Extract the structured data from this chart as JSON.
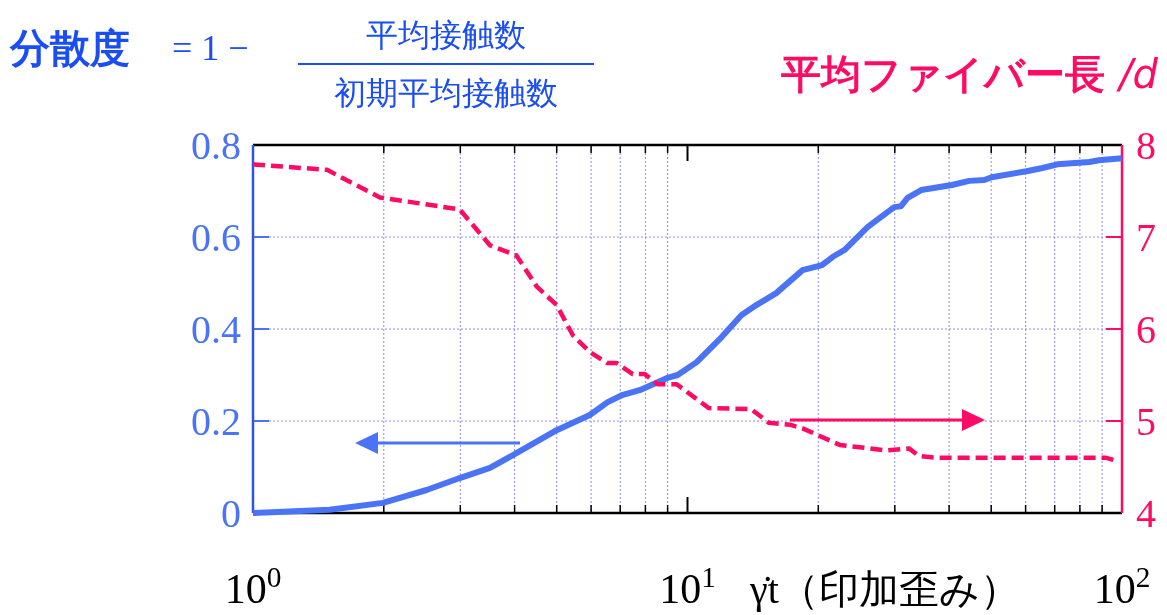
{
  "chart_data": {
    "type": "line",
    "ylabel": "分散度 = 1 − 平均接触数/初期平均接触数",
    "y2label": "平均ファイバー長 /d",
    "xlabel": "γ̇t（印加歪み）",
    "log": "x",
    "xlim": [
      1,
      100
    ],
    "xticks": [
      {
        "value": 1,
        "label": "10$^{0}$"
      },
      {
        "value": 10,
        "label": "10$^{1}$"
      },
      {
        "value": 100,
        "label": "10$^{2}$"
      }
    ],
    "ylim": [
      0,
      0.8
    ],
    "yticks": [
      0,
      0.2,
      0.4,
      0.6,
      0.8
    ],
    "y2lim": [
      4,
      8
    ],
    "y2ticks": [
      4,
      5,
      6,
      7,
      8
    ],
    "grid": true,
    "series": [
      {
        "color": "#4a74f5",
        "line_style": "solid",
        "x": [
          1,
          1.5,
          1.99,
          2.51,
          2.99,
          3.51,
          4.04,
          5.0,
          5.45,
          5.96,
          6.55,
          7.1,
          7.76,
          8.95,
          9.49,
          10.5,
          12.0,
          13.3,
          14.4,
          16.0,
          18.4,
          20.4,
          21.6,
          23.0,
          26.0,
          29.9,
          31.0,
          32.1,
          34.5,
          40.6,
          44.5,
          48.2,
          50.1,
          60.3,
          65.6,
          71.0,
          84.1,
          88.5,
          100
        ],
        "values": [
          0,
          0.007,
          0.022,
          0.05,
          0.076,
          0.098,
          0.13,
          0.18,
          0.196,
          0.213,
          0.241,
          0.257,
          0.267,
          0.293,
          0.3,
          0.328,
          0.383,
          0.43,
          0.452,
          0.478,
          0.528,
          0.539,
          0.557,
          0.572,
          0.622,
          0.665,
          0.667,
          0.685,
          0.702,
          0.713,
          0.722,
          0.724,
          0.73,
          0.743,
          0.75,
          0.758,
          0.763,
          0.767,
          0.771
        ]
      },
      {
        "color": "#ff0a64",
        "line_style": "dashed",
        "axis": "y2",
        "x": [
          1,
          1.48,
          1.96,
          2.99,
          3.51,
          4.04,
          4.5,
          5.0,
          5.45,
          5.96,
          6.53,
          6.87,
          7.48,
          7.97,
          8.53,
          9.44,
          11.2,
          14.0,
          15.4,
          17.2,
          18.4,
          22.4,
          28.7,
          32.4,
          34.1,
          37.4,
          91.9,
          96.9
        ],
        "values": [
          7.79,
          7.73,
          7.43,
          7.3,
          6.91,
          6.8,
          6.46,
          6.26,
          5.93,
          5.75,
          5.63,
          5.63,
          5.51,
          5.51,
          5.4,
          5.4,
          5.14,
          5.13,
          4.98,
          4.96,
          4.92,
          4.74,
          4.68,
          4.7,
          4.62,
          4.6,
          4.6,
          4.57
        ]
      }
    ]
  }
}
